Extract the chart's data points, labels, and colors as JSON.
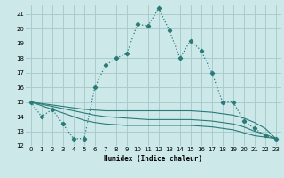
{
  "xlabel": "Humidex (Indice chaleur)",
  "bg_color": "#cce8e8",
  "grid_color": "#aacccc",
  "line_color": "#2a7a7a",
  "xlim": [
    -0.5,
    23.5
  ],
  "ylim": [
    12,
    21.6
  ],
  "yticks": [
    12,
    13,
    14,
    15,
    16,
    17,
    18,
    19,
    20,
    21
  ],
  "xticks": [
    0,
    1,
    2,
    3,
    4,
    5,
    6,
    7,
    8,
    9,
    10,
    11,
    12,
    13,
    14,
    15,
    16,
    17,
    18,
    19,
    20,
    21,
    22,
    23
  ],
  "series1_x": [
    0,
    1,
    2,
    3,
    4,
    5,
    6,
    7,
    8,
    9,
    10,
    11,
    12,
    13,
    14,
    15,
    16,
    17,
    18,
    19,
    20,
    21,
    22,
    23
  ],
  "series1_y": [
    15.0,
    14.0,
    14.5,
    13.5,
    12.5,
    12.5,
    16.0,
    17.5,
    18.0,
    18.3,
    20.3,
    20.2,
    21.4,
    19.9,
    18.0,
    19.2,
    18.5,
    17.0,
    15.0,
    15.0,
    13.7,
    13.2,
    12.7,
    12.5
  ],
  "series2_x": [
    0,
    1,
    2,
    3,
    4,
    5,
    6,
    7,
    8,
    9,
    10,
    11,
    12,
    13,
    14,
    15,
    16,
    17,
    18,
    19,
    20,
    21,
    22,
    23
  ],
  "series2_y": [
    15.0,
    14.9,
    14.8,
    14.7,
    14.6,
    14.5,
    14.45,
    14.4,
    14.4,
    14.4,
    14.4,
    14.4,
    14.4,
    14.4,
    14.4,
    14.4,
    14.35,
    14.3,
    14.2,
    14.1,
    13.9,
    13.6,
    13.2,
    12.5
  ],
  "series3_x": [
    0,
    1,
    2,
    3,
    4,
    5,
    6,
    7,
    8,
    9,
    10,
    11,
    12,
    13,
    14,
    15,
    16,
    17,
    18,
    19,
    20,
    21,
    22,
    23
  ],
  "series3_y": [
    15.0,
    14.85,
    14.7,
    14.55,
    14.4,
    14.25,
    14.1,
    14.0,
    13.95,
    13.9,
    13.85,
    13.8,
    13.8,
    13.8,
    13.8,
    13.8,
    13.75,
    13.7,
    13.6,
    13.5,
    13.3,
    13.0,
    12.8,
    12.5
  ],
  "series4_x": [
    0,
    1,
    2,
    3,
    4,
    5,
    6,
    7,
    8,
    9,
    10,
    11,
    12,
    13,
    14,
    15,
    16,
    17,
    18,
    19,
    20,
    21,
    22,
    23
  ],
  "series4_y": [
    15.0,
    14.75,
    14.5,
    14.25,
    14.0,
    13.75,
    13.6,
    13.5,
    13.45,
    13.4,
    13.4,
    13.4,
    13.4,
    13.4,
    13.4,
    13.4,
    13.35,
    13.3,
    13.2,
    13.1,
    12.9,
    12.7,
    12.6,
    12.5
  ]
}
